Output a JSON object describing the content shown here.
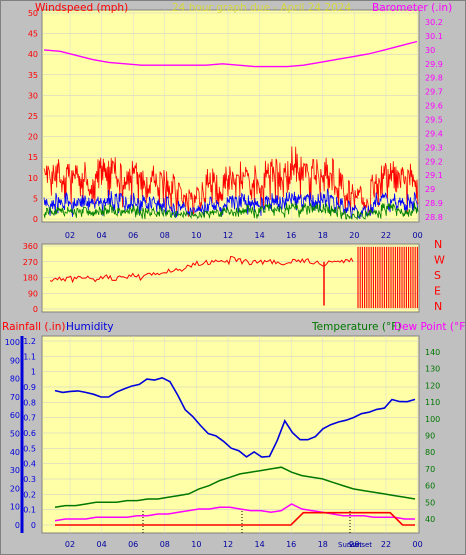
{
  "colors": {
    "plot_bg": "#ffffa8",
    "frame_bg": "#c0c0c0",
    "wind_speed": "#ff0000",
    "wind_mid": "#0000ff",
    "wind_low": "#008000",
    "barometer": "#ff00ff",
    "rainfall": "#ff0000",
    "humidity": "#0000dd",
    "temperature": "#007700",
    "dew_point": "#ff00ff",
    "left_axis_wind": "#ff0000",
    "left_axis_hum": "#0000dd",
    "right_axis_baro": "#ff00ff",
    "right_axis_temp": "#007700",
    "direction_labels": "#ff0000",
    "bottom_ticks": "#0000a0"
  },
  "header": {
    "windspeed": "Windspeed (mph)",
    "title": "24 hour graph due - April 24 2024",
    "barometer": "Barometer (.in)"
  },
  "lower_header": {
    "rainfall": "Rainfall (.in)",
    "humidity": "Humidity",
    "temperature": "Temperature (°F)",
    "dew_point": "Dew Point (°F)"
  },
  "marker_labels": [
    "Sunset",
    "Sunset"
  ],
  "chart_data": [
    {
      "type": "line",
      "name": "wind_barometer",
      "x_tick_labels": [
        "02",
        "04",
        "06",
        "08",
        "10",
        "12",
        "14",
        "16",
        "18",
        "20",
        "22",
        "00"
      ],
      "y_left_ticks": [
        0,
        5,
        10,
        15,
        20,
        25,
        30,
        35,
        40,
        45,
        50
      ],
      "y_right_ticks": [
        "28.8",
        "28.9",
        "29",
        "29.1",
        "29.2",
        "29.3",
        "29.4",
        "29.5",
        "29.6",
        "29.7",
        "29.8",
        "29.9",
        "30",
        "30.1",
        "30.2"
      ],
      "ylim_left": [
        0,
        50
      ],
      "ylim_right": [
        28.75,
        30.25
      ],
      "series": [
        {
          "role": "gust",
          "values": [
            10,
            11,
            12,
            10,
            11,
            10,
            11,
            12,
            10,
            11,
            12,
            13,
            14,
            12,
            11,
            10,
            12,
            13,
            12,
            10,
            11,
            9,
            10,
            9,
            8,
            7,
            6,
            5,
            4,
            6,
            8,
            10,
            11,
            9,
            10,
            11,
            10,
            12,
            11,
            10,
            11,
            10,
            12,
            13,
            12,
            11,
            13,
            15,
            14,
            13,
            12,
            12,
            11,
            13,
            12,
            10,
            10,
            8,
            6,
            5,
            5,
            4,
            9,
            11,
            12,
            11,
            12,
            10,
            10,
            11,
            12
          ]
        },
        {
          "role": "avg",
          "values": [
            4,
            4,
            5,
            4,
            5,
            4,
            5,
            5,
            4,
            4,
            5,
            5,
            6,
            5,
            5,
            4,
            5,
            5,
            5,
            4,
            4,
            4,
            4,
            4,
            3,
            3,
            3,
            2,
            2,
            3,
            3,
            4,
            4,
            4,
            4,
            5,
            4,
            5,
            5,
            4,
            4,
            4,
            5,
            5,
            5,
            4,
            5,
            6,
            6,
            5,
            5,
            5,
            5,
            6,
            5,
            4,
            4,
            3,
            2,
            2,
            2,
            2,
            4,
            5,
            5,
            5,
            5,
            4,
            4,
            5,
            5
          ]
        },
        {
          "role": "low",
          "values": [
            2,
            2,
            2,
            2,
            2,
            2,
            2,
            2,
            2,
            2,
            2,
            3,
            3,
            2,
            2,
            2,
            2,
            3,
            2,
            2,
            2,
            2,
            2,
            2,
            1,
            1,
            1,
            1,
            1,
            1,
            1,
            2,
            2,
            2,
            2,
            2,
            2,
            3,
            3,
            2,
            2,
            2,
            3,
            3,
            3,
            2,
            3,
            3,
            3,
            3,
            3,
            3,
            3,
            3,
            3,
            2,
            2,
            1,
            1,
            1,
            1,
            1,
            2,
            2,
            3,
            3,
            3,
            2,
            2,
            2,
            3
          ]
        },
        {
          "role": "barometer",
          "values": [
            30.0,
            29.99,
            29.96,
            29.93,
            29.91,
            29.9,
            29.89,
            29.89,
            29.89,
            29.89,
            29.89,
            29.9,
            29.89,
            29.88,
            29.88,
            29.88,
            29.89,
            29.91,
            29.93,
            29.95,
            29.97,
            30.0,
            30.03,
            30.06
          ]
        }
      ]
    },
    {
      "type": "scatter",
      "name": "wind_direction",
      "y_ticks": [
        0,
        90,
        180,
        270,
        360
      ],
      "y_right_labels": [
        "N",
        "W",
        "S",
        "E",
        "N"
      ],
      "ylim": [
        0,
        360
      ],
      "values": [
        170,
        180,
        175,
        185,
        170,
        180,
        190,
        175,
        165,
        180,
        185,
        175,
        180,
        190,
        200,
        185,
        180,
        195,
        205,
        200,
        210,
        215,
        220,
        230,
        240,
        250,
        260,
        270,
        265,
        275,
        280,
        270,
        285,
        275,
        270,
        260,
        270,
        265,
        275,
        270,
        260,
        255,
        265,
        270,
        275,
        280,
        270,
        265,
        260,
        270,
        280,
        275,
        270,
        280
      ]
    },
    {
      "type": "line",
      "name": "humidity_temperature",
      "x_tick_labels": [
        "02",
        "04",
        "06",
        "08",
        "10",
        "12",
        "14",
        "16",
        "18",
        "20",
        "22",
        "00"
      ],
      "y_left_ticks": [
        0,
        0.1,
        0.2,
        0.3,
        0.4,
        0.5,
        0.6,
        0.7,
        0.8,
        0.9,
        1,
        1.1,
        1.2
      ],
      "y_left_outer_ticks": [
        0,
        10,
        20,
        30,
        40,
        50,
        60,
        70,
        80,
        90,
        100
      ],
      "y_right_ticks": [
        40,
        50,
        60,
        70,
        80,
        90,
        100,
        110,
        120,
        130,
        140
      ],
      "series": [
        {
          "role": "humidity",
          "values": [
            0.88,
            0.87,
            0.87,
            0.88,
            0.86,
            0.85,
            0.84,
            0.84,
            0.86,
            0.89,
            0.9,
            0.92,
            0.95,
            0.95,
            0.96,
            0.93,
            0.85,
            0.75,
            0.7,
            0.65,
            0.6,
            0.58,
            0.54,
            0.5,
            0.48,
            0.45,
            0.47,
            0.44,
            0.45,
            0.55,
            0.68,
            0.6,
            0.55,
            0.55,
            0.57,
            0.63,
            0.66,
            0.67,
            0.68,
            0.7,
            0.72,
            0.74,
            0.75,
            0.76,
            0.82,
            0.8,
            0.81,
            0.82
          ]
        },
        {
          "role": "temperature",
          "values": [
            47,
            48,
            48,
            49,
            50,
            50,
            50,
            51,
            51,
            52,
            52,
            53,
            54,
            55,
            58,
            60,
            63,
            65,
            67,
            68,
            69,
            70,
            71,
            68,
            66,
            65,
            64,
            62,
            60,
            58,
            57,
            56,
            55,
            54,
            53,
            52
          ]
        },
        {
          "role": "dew_point",
          "values": [
            39,
            40,
            40,
            40,
            41,
            41,
            41,
            41,
            42,
            42,
            43,
            43,
            44,
            45,
            46,
            46,
            47,
            47,
            46,
            45,
            45,
            44,
            45,
            49,
            46,
            45,
            44,
            43,
            42,
            42,
            42,
            41,
            41,
            41,
            40,
            40
          ]
        },
        {
          "role": "rainfall",
          "values": [
            0,
            0,
            0,
            0,
            0,
            0,
            0,
            0,
            0,
            0,
            0,
            0,
            0,
            0,
            0,
            0,
            0,
            0,
            0,
            0,
            0.01,
            0.01,
            0.01,
            0.01,
            0.01,
            0.01,
            0.01,
            0.01,
            0,
            0
          ]
        }
      ]
    }
  ]
}
